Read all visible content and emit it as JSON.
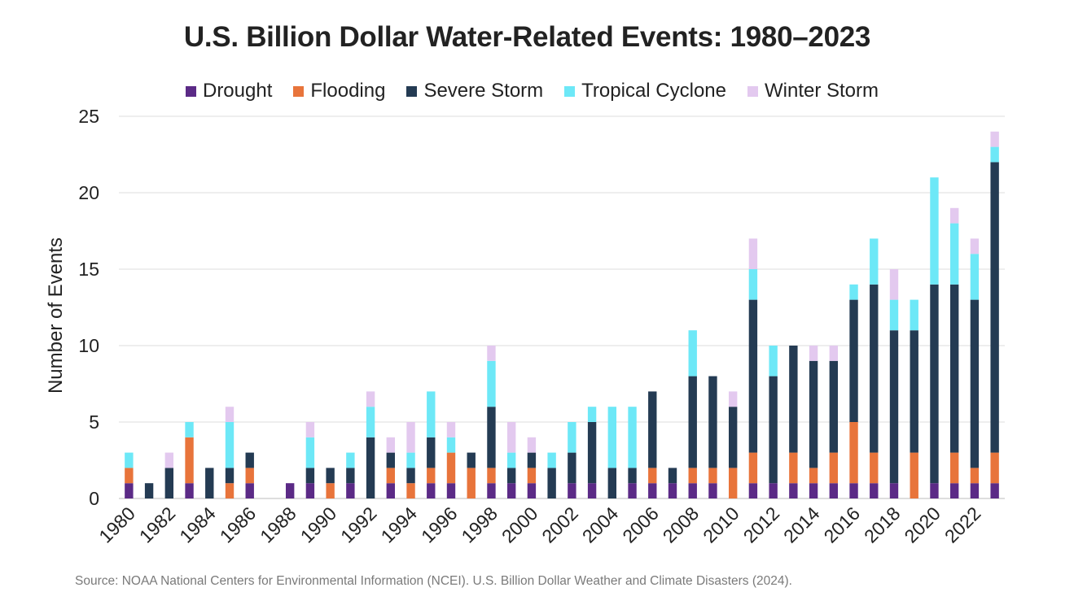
{
  "source": "Source: NOAA National Centers for Environmental Information (NCEI). U.S. Billion Dollar Weather and Climate Disasters (2024).",
  "chart_data": {
    "type": "bar",
    "stacked": true,
    "title": "U.S. Billion Dollar Water-Related Events: 1980–2023",
    "xlabel": "",
    "ylabel": "Number of Events",
    "ylim": [
      0,
      25
    ],
    "yticks": [
      0,
      5,
      10,
      15,
      20,
      25
    ],
    "xtick_labels": [
      "1980",
      "1982",
      "1984",
      "1986",
      "1988",
      "1990",
      "1992",
      "1994",
      "1996",
      "1998",
      "2000",
      "2002",
      "2004",
      "2006",
      "2008",
      "2010",
      "2012",
      "2014",
      "2016",
      "2018",
      "2020",
      "2022"
    ],
    "grid": "horizontal",
    "legend_position": "top",
    "categories": [
      "1980",
      "1981",
      "1982",
      "1983",
      "1984",
      "1985",
      "1986",
      "1987",
      "1988",
      "1989",
      "1990",
      "1991",
      "1992",
      "1993",
      "1994",
      "1995",
      "1996",
      "1997",
      "1998",
      "1999",
      "2000",
      "2001",
      "2002",
      "2003",
      "2004",
      "2005",
      "2006",
      "2007",
      "2008",
      "2009",
      "2010",
      "2011",
      "2012",
      "2013",
      "2014",
      "2015",
      "2016",
      "2017",
      "2018",
      "2019",
      "2020",
      "2021",
      "2022",
      "2023"
    ],
    "series": [
      {
        "name": "Drought",
        "color": "#5b2a86",
        "values": [
          1,
          0,
          0,
          1,
          0,
          0,
          1,
          0,
          1,
          1,
          0,
          1,
          0,
          1,
          0,
          1,
          1,
          0,
          1,
          1,
          1,
          0,
          1,
          1,
          0,
          1,
          1,
          1,
          1,
          1,
          0,
          1,
          1,
          1,
          1,
          1,
          1,
          1,
          1,
          0,
          1,
          1,
          1,
          1
        ]
      },
      {
        "name": "Flooding",
        "color": "#e8743b",
        "values": [
          1,
          0,
          0,
          3,
          0,
          1,
          1,
          0,
          0,
          0,
          1,
          0,
          0,
          1,
          1,
          1,
          2,
          2,
          1,
          0,
          1,
          0,
          0,
          0,
          0,
          0,
          1,
          0,
          1,
          1,
          2,
          2,
          0,
          2,
          1,
          2,
          4,
          2,
          0,
          3,
          0,
          2,
          1,
          2
        ]
      },
      {
        "name": "Severe Storm",
        "color": "#243b53",
        "values": [
          0,
          1,
          2,
          0,
          2,
          1,
          1,
          0,
          0,
          1,
          1,
          1,
          4,
          1,
          1,
          2,
          0,
          1,
          4,
          1,
          1,
          2,
          2,
          4,
          2,
          1,
          5,
          1,
          6,
          6,
          4,
          10,
          7,
          7,
          7,
          6,
          8,
          11,
          10,
          8,
          13,
          11,
          11,
          19
        ]
      },
      {
        "name": "Tropical Cyclone",
        "color": "#6de8f7",
        "values": [
          1,
          0,
          0,
          1,
          0,
          3,
          0,
          0,
          0,
          2,
          0,
          1,
          2,
          0,
          1,
          3,
          1,
          0,
          3,
          1,
          0,
          1,
          2,
          1,
          4,
          4,
          0,
          0,
          3,
          0,
          0,
          2,
          2,
          0,
          0,
          0,
          1,
          3,
          2,
          2,
          7,
          4,
          3,
          1
        ]
      },
      {
        "name": "Winter Storm",
        "color": "#e3c9ef",
        "values": [
          0,
          0,
          1,
          0,
          0,
          1,
          0,
          0,
          0,
          1,
          0,
          0,
          1,
          1,
          2,
          0,
          1,
          0,
          1,
          2,
          1,
          0,
          0,
          0,
          0,
          0,
          0,
          0,
          0,
          0,
          1,
          2,
          0,
          0,
          1,
          1,
          0,
          0,
          2,
          0,
          0,
          1,
          1,
          1
        ]
      }
    ]
  }
}
